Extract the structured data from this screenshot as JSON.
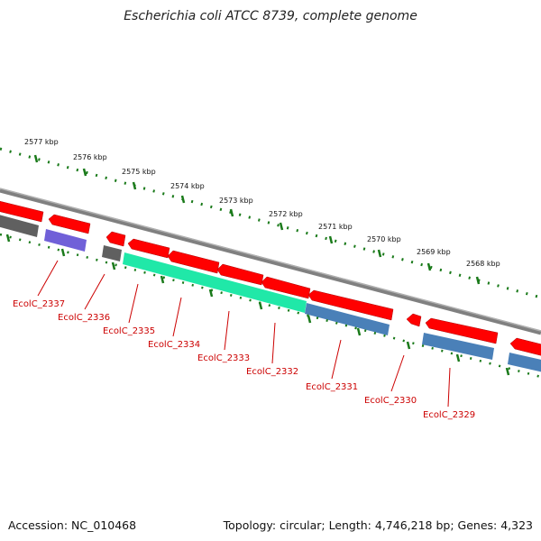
{
  "title": "Escherichia coli ATCC 8739, complete genome",
  "footer": {
    "accession": "Accession: NC_010468",
    "summary": "Topology: circular; Length: 4,746,218 bp; Genes: 4,323"
  },
  "kbp_labels": [
    "2577 kbp",
    "2576 kbp",
    "2575 kbp",
    "2574 kbp",
    "2573 kbp",
    "2572 kbp",
    "2571 kbp",
    "2570 kbp",
    "2569 kbp",
    "2568 kbp"
  ],
  "gene_labels": [
    "EcolC_2337",
    "EcolC_2336",
    "EcolC_2335",
    "EcolC_2334",
    "EcolC_2333",
    "EcolC_2332",
    "EcolC_2331",
    "EcolC_2330",
    "EcolC_2329"
  ],
  "colors": {
    "cds": "#ff0000",
    "backbone": "#808080",
    "ruler": "#1a7a1a",
    "label": "#cc0000",
    "purple": "#7060d8",
    "teal": "#20e8a8",
    "blue": "#4a80b8",
    "dark_gray": "#606060"
  }
}
